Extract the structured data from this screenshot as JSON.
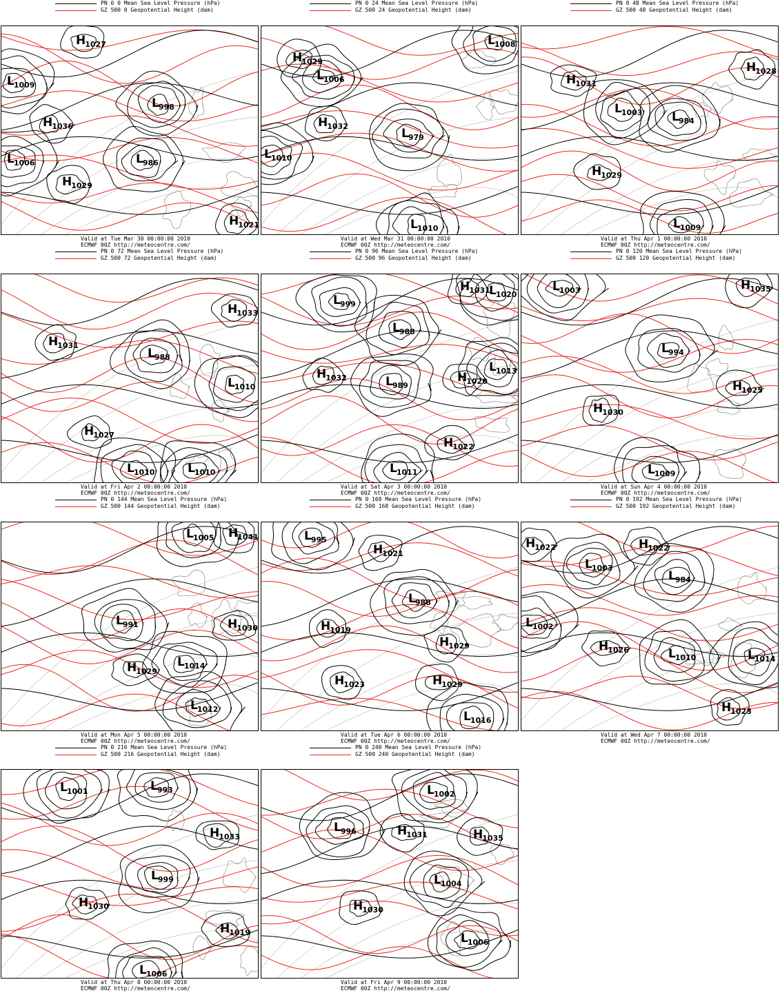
{
  "colors": {
    "pressure_contour": "#000000",
    "height_contour": "#e8261c",
    "coastline": "#8a8a8a"
  },
  "panels": [
    {
      "legend": [
        "PN 0 0 Mean Sea Level Pressure (hPa)",
        "GZ 500 0 Geopotential Height (dam)"
      ],
      "caption": [
        "Valid at Tue Mar 30 00:00:00 2010",
        "ECMWF 00Z http://meteocentre.com/"
      ],
      "centers": [
        {
          "type": "H",
          "value": "1027"
        },
        {
          "type": "L",
          "value": "1009"
        },
        {
          "type": "H",
          "value": "1036"
        },
        {
          "type": "L",
          "value": "998"
        },
        {
          "type": "L",
          "value": "986"
        },
        {
          "type": "L",
          "value": "1006"
        },
        {
          "type": "H",
          "value": "1029"
        },
        {
          "type": "H",
          "value": "1021"
        }
      ]
    },
    {
      "legend": [
        "PN 0 24 Mean Sea Level Pressure (hPa)",
        "GZ 500 24 Geopotential Height (dam)"
      ],
      "caption": [
        "Valid at Wed Mar 31 00:00:00 2010",
        "ECMWF 00Z http://meteocentre.com/"
      ],
      "centers": [
        {
          "type": "L",
          "value": "1008"
        },
        {
          "type": "H",
          "value": "1029"
        },
        {
          "type": "L",
          "value": "1006"
        },
        {
          "type": "H",
          "value": "1032"
        },
        {
          "type": "L",
          "value": "979"
        },
        {
          "type": "L",
          "value": "1010"
        },
        {
          "type": "L",
          "value": "1010"
        }
      ]
    },
    {
      "legend": [
        "PN 0 48 Mean Sea Level Pressure (hPa)",
        "GZ 500 48 Geopotential Height (dam)"
      ],
      "caption": [
        "Valid at Thu Apr  1 00:00:00 2010",
        "ECMWF 00Z http://meteocentre.com/"
      ],
      "centers": [
        {
          "type": "H",
          "value": "1028"
        },
        {
          "type": "H",
          "value": "1031"
        },
        {
          "type": "L",
          "value": "1003"
        },
        {
          "type": "L",
          "value": "984"
        },
        {
          "type": "H",
          "value": "1029"
        },
        {
          "type": "L",
          "value": "1009"
        }
      ]
    },
    {
      "legend": [
        "PN 0 72 Mean Sea Level Pressure (hPa)",
        "GZ 500 72 Geopotential Height (dam)"
      ],
      "caption": [
        "Valid at Fri Apr  2 00:00:00 2010",
        "ECMWF 00Z http://meteocentre.com/"
      ],
      "centers": [
        {
          "type": "H",
          "value": "1033"
        },
        {
          "type": "H",
          "value": "1031"
        },
        {
          "type": "L",
          "value": "988"
        },
        {
          "type": "L",
          "value": "1010"
        },
        {
          "type": "H",
          "value": "1027"
        },
        {
          "type": "L",
          "value": "1010"
        },
        {
          "type": "L",
          "value": "1010"
        }
      ]
    },
    {
      "legend": [
        "PN 0 96 Mean Sea Level Pressure (hPa)",
        "GZ 500 96 Geopotential Height (dam)"
      ],
      "caption": [
        "Valid at Sat Apr  3 00:00:00 2010",
        "ECMWF 00Z http://meteocentre.com/"
      ],
      "centers": [
        {
          "type": "H",
          "value": "1031"
        },
        {
          "type": "L",
          "value": "1020"
        },
        {
          "type": "L",
          "value": "999"
        },
        {
          "type": "L",
          "value": "988"
        },
        {
          "type": "L",
          "value": "1013"
        },
        {
          "type": "H",
          "value": "1032"
        },
        {
          "type": "L",
          "value": "989"
        },
        {
          "type": "H",
          "value": "1020"
        },
        {
          "type": "H",
          "value": "1022"
        },
        {
          "type": "L",
          "value": "1011"
        }
      ]
    },
    {
      "legend": [
        "PN 0 120 Mean Sea Level Pressure (hPa)",
        "GZ 500 120 Geopotential Height (dam)"
      ],
      "caption": [
        "Valid at Sun Apr  4 00:00:00 2010",
        "ECMWF 00Z http://meteocentre.com/"
      ],
      "centers": [
        {
          "type": "L",
          "value": "1003"
        },
        {
          "type": "H",
          "value": "1035"
        },
        {
          "type": "L",
          "value": "994"
        },
        {
          "type": "H",
          "value": "1025"
        },
        {
          "type": "H",
          "value": "1030"
        },
        {
          "type": "L",
          "value": "1009"
        }
      ]
    },
    {
      "legend": [
        "PN 0 144 Mean Sea Level Pressure (hPa)",
        "GZ 500 144 Geopotential Height (dam)"
      ],
      "caption": [
        "Valid at Mon Apr  5 00:00:00 2010",
        "ECMWF 00Z http://meteocentre.com/"
      ],
      "centers": [
        {
          "type": "L",
          "value": "1005"
        },
        {
          "type": "H",
          "value": "1041"
        },
        {
          "type": "L",
          "value": "991"
        },
        {
          "type": "H",
          "value": "1030"
        },
        {
          "type": "H",
          "value": "1029"
        },
        {
          "type": "L",
          "value": "1014"
        },
        {
          "type": "L",
          "value": "1012"
        }
      ]
    },
    {
      "legend": [
        "PN 0 168 Mean Sea Level Pressure (hPa)",
        "GZ 500 168 Geopotential Height (dam)"
      ],
      "caption": [
        "Valid at Tue Apr  6 00:00:00 2010",
        "ECMWF 00Z http://meteocentre.com/"
      ],
      "centers": [
        {
          "type": "L",
          "value": "995"
        },
        {
          "type": "H",
          "value": "1021"
        },
        {
          "type": "L",
          "value": "988"
        },
        {
          "type": "H",
          "value": "1019"
        },
        {
          "type": "H",
          "value": "1029"
        },
        {
          "type": "H",
          "value": "1023"
        },
        {
          "type": "H",
          "value": "1029"
        },
        {
          "type": "L",
          "value": "1016"
        }
      ]
    },
    {
      "legend": [
        "PN 0 192 Mean Sea Level Pressure (hPa)",
        "GZ 500 192 Geopotential Height (dam)"
      ],
      "caption": [
        "Valid at Wed Apr  7 00:00:00 2010",
        "ECMWF 00Z http://meteocentre.com/"
      ],
      "centers": [
        {
          "type": "H",
          "value": "1022"
        },
        {
          "type": "H",
          "value": "1022"
        },
        {
          "type": "L",
          "value": "1003"
        },
        {
          "type": "L",
          "value": "984"
        },
        {
          "type": "L",
          "value": "1002"
        },
        {
          "type": "H",
          "value": "1026"
        },
        {
          "type": "L",
          "value": "1010"
        },
        {
          "type": "L",
          "value": "1014"
        },
        {
          "type": "H",
          "value": "1023"
        }
      ]
    },
    {
      "legend": [
        "PN 0 216 Mean Sea Level Pressure (hPa)",
        "GZ 500 216 Geopotential Height (dam)"
      ],
      "caption": [
        "Valid at Thu Apr  8 00:00:00 2010",
        "ECMWF 00Z http://meteocentre.com/"
      ],
      "centers": [
        {
          "type": "L",
          "value": "1001"
        },
        {
          "type": "L",
          "value": "993"
        },
        {
          "type": "H",
          "value": "1033"
        },
        {
          "type": "L",
          "value": "999"
        },
        {
          "type": "H",
          "value": "1030"
        },
        {
          "type": "H",
          "value": "1019"
        },
        {
          "type": "L",
          "value": "1006"
        }
      ]
    },
    {
      "legend": [
        "PN 0 240 Mean Sea Level Pressure (hPa)",
        "GZ 500 240 Geopotential Height (dam)"
      ],
      "caption": [
        "Valid at Fri Apr  9 00:00:00 2010",
        "ECMWF 00Z http://meteocentre.com/"
      ],
      "centers": [
        {
          "type": "L",
          "value": "1002"
        },
        {
          "type": "L",
          "value": "996"
        },
        {
          "type": "H",
          "value": "1031"
        },
        {
          "type": "H",
          "value": "1035"
        },
        {
          "type": "L",
          "value": "1004"
        },
        {
          "type": "H",
          "value": "1030"
        },
        {
          "type": "L",
          "value": "1006"
        }
      ]
    }
  ]
}
